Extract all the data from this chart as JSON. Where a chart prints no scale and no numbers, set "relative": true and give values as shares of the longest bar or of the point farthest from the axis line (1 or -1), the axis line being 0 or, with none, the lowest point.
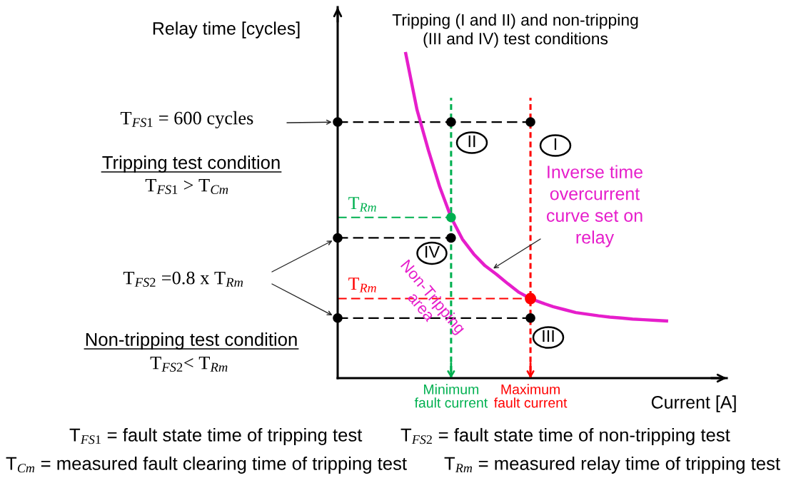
{
  "chart_data": {
    "type": "line",
    "relative": true,
    "tick_labels": "x",
    "title": "Tripping (I and II) and non-tripping\n(III and IV) test conditions",
    "xlabel": "Current [A]",
    "ylabel": "Relay time [cycles]",
    "categories": [
      null,
      null,
      null,
      null,
      null,
      null,
      null,
      null,
      null,
      null,
      "Minimum fault current",
      null,
      null,
      null,
      null,
      null,
      null,
      "Maximum fault current",
      null,
      null,
      null,
      null,
      null,
      null,
      null,
      null,
      null,
      null,
      null,
      null,
      null,
      null,
      null,
      null,
      null
    ],
    "series": [
      {
        "name": "Inverse time\novercurrent\ncurve set on\nrelay",
        "color": "#e61ecb",
        "values": [
          null,
          null,
          null,
          null,
          null,
          null,
          1.0,
          0.826,
          0.702,
          0.589,
          0.495,
          0.428,
          0.382,
          0.346,
          0.32,
          0.291,
          0.264,
          0.245,
          0.232,
          0.22,
          0.211,
          0.202,
          0.197,
          0.192,
          0.188,
          0.185,
          0.182,
          0.18,
          0.178,
          0.176,
          null,
          null,
          null,
          null,
          null
        ]
      },
      {
        "type": "bar",
        "color": "#00b050",
        "line_style": "dashed",
        "values": [
          null,
          null,
          null,
          null,
          null,
          null,
          null,
          null,
          null,
          null,
          0.864,
          null,
          null,
          null,
          null,
          null,
          null,
          null,
          null,
          null,
          null,
          null,
          null,
          null,
          null,
          null,
          null,
          null,
          null,
          null,
          null,
          null,
          null,
          null,
          null
        ]
      },
      {
        "type": "bar",
        "color": "#ff0000",
        "line_style": "dashed",
        "values": [
          null,
          null,
          null,
          null,
          null,
          null,
          null,
          null,
          null,
          null,
          null,
          null,
          null,
          null,
          null,
          null,
          null,
          0.864,
          null,
          null,
          null,
          null,
          null,
          null,
          null,
          null,
          null,
          null,
          null,
          null,
          null,
          null,
          null,
          null,
          null
        ]
      },
      {
        "color": "#000000",
        "line_style": "dashed",
        "values": [
          0.789,
          0.789,
          0.789,
          0.789,
          0.789,
          0.789,
          0.789,
          0.789,
          0.789,
          0.789,
          0.789,
          0.789,
          0.789,
          0.789,
          0.789,
          0.789,
          0.789,
          0.789,
          null,
          null,
          null,
          null,
          null,
          null,
          null,
          null,
          null,
          null,
          null,
          null,
          null,
          null,
          null,
          null,
          null
        ]
      },
      {
        "name": "T$_{Rm}$",
        "color": "#00b050",
        "line_style": "dashed",
        "values": [
          0.495,
          0.495,
          0.495,
          0.495,
          0.495,
          0.495,
          0.495,
          0.495,
          0.495,
          0.495,
          0.495,
          null,
          null,
          null,
          null,
          null,
          null,
          null,
          null,
          null,
          null,
          null,
          null,
          null,
          null,
          null,
          null,
          null,
          null,
          null,
          null,
          null,
          null,
          null,
          null
        ]
      },
      {
        "color": "#000000",
        "line_style": "dashed",
        "values": [
          0.432,
          0.432,
          0.432,
          0.432,
          0.432,
          0.432,
          0.432,
          0.432,
          0.432,
          0.432,
          0.432,
          null,
          null,
          null,
          null,
          null,
          null,
          null,
          null,
          null,
          null,
          null,
          null,
          null,
          null,
          null,
          null,
          null,
          null,
          null,
          null,
          null,
          null,
          null,
          null
        ]
      },
      {
        "name": "T$_{Rm}$",
        "color": "#ff0000",
        "line_style": "dashed",
        "values": [
          0.245,
          0.245,
          0.245,
          0.245,
          0.245,
          0.245,
          0.245,
          0.245,
          0.245,
          0.245,
          0.245,
          0.245,
          0.245,
          0.245,
          0.245,
          0.245,
          0.245,
          0.245,
          null,
          null,
          null,
          null,
          null,
          null,
          null,
          null,
          null,
          null,
          null,
          null,
          null,
          null,
          null,
          null,
          null
        ]
      },
      {
        "color": "#000000",
        "line_style": "dashed",
        "values": [
          0.185,
          0.185,
          0.185,
          0.185,
          0.185,
          0.185,
          0.185,
          0.185,
          0.185,
          0.185,
          0.185,
          0.185,
          0.185,
          0.185,
          0.185,
          0.185,
          0.185,
          0.185,
          null,
          null,
          null,
          null,
          null,
          null,
          null,
          null,
          null,
          null,
          null,
          null,
          null,
          null,
          null,
          null,
          null
        ]
      },
      {
        "type": "scatter",
        "color": "#000000",
        "marker": "circle",
        "values": [
          0.789,
          null,
          null,
          null,
          null,
          null,
          null,
          null,
          null,
          null,
          0.789,
          null,
          null,
          null,
          null,
          null,
          null,
          0.789,
          null,
          null,
          null,
          null,
          null,
          null,
          null,
          null,
          null,
          null,
          null,
          null,
          null,
          null,
          null,
          null,
          null
        ]
      },
      {
        "type": "scatter",
        "color": "#000000",
        "marker": "circle",
        "values": [
          0.432,
          null,
          null,
          null,
          null,
          null,
          null,
          null,
          null,
          null,
          0.432,
          null,
          null,
          null,
          null,
          null,
          null,
          null,
          null,
          null,
          null,
          null,
          null,
          null,
          null,
          null,
          null,
          null,
          null,
          null,
          null,
          null,
          null,
          null,
          null
        ]
      },
      {
        "type": "scatter",
        "color": "#000000",
        "marker": "circle",
        "values": [
          0.185,
          null,
          null,
          null,
          null,
          null,
          null,
          null,
          null,
          null,
          null,
          null,
          null,
          null,
          null,
          null,
          null,
          0.185,
          null,
          null,
          null,
          null,
          null,
          null,
          null,
          null,
          null,
          null,
          null,
          null,
          null,
          null,
          null,
          null,
          null
        ]
      },
      {
        "type": "scatter",
        "color": "#00b050",
        "marker": "circle",
        "values": [
          null,
          null,
          null,
          null,
          null,
          null,
          null,
          null,
          null,
          null,
          0.495,
          null,
          null,
          null,
          null,
          null,
          null,
          null,
          null,
          null,
          null,
          null,
          null,
          null,
          null,
          null,
          null,
          null,
          null,
          null,
          null,
          null,
          null,
          null,
          null
        ]
      },
      {
        "type": "scatter",
        "color": "#ff0000",
        "marker": "circle",
        "values": [
          null,
          null,
          null,
          null,
          null,
          null,
          null,
          null,
          null,
          null,
          null,
          null,
          null,
          null,
          null,
          null,
          null,
          0.245,
          null,
          null,
          null,
          null,
          null,
          null,
          null,
          null,
          null,
          null,
          null,
          null,
          null,
          null,
          null,
          null,
          null
        ]
      }
    ],
    "annotations": [
      "T$_{FS1}$ = 600 cycles",
      "Tripping test condition",
      "T$_{FS1}$ > T$_{Cm}$",
      "T$_{FS2}$ =0.8 x T$_{Rm}$",
      "Non-tripping test condition",
      "T$_{FS2}$< T$_{Rm}$",
      "II",
      "I",
      "IV",
      "III",
      "Non-Tripping\narea",
      "T$_{FS1}$ = fault state time of tripping test",
      "T$_{FS2}$ = fault state time of non-tripping test",
      "T$_{Cm}$ = measured fault clearing time of tripping test",
      "T$_{Rm}$ = measured relay time of tripping test"
    ]
  }
}
